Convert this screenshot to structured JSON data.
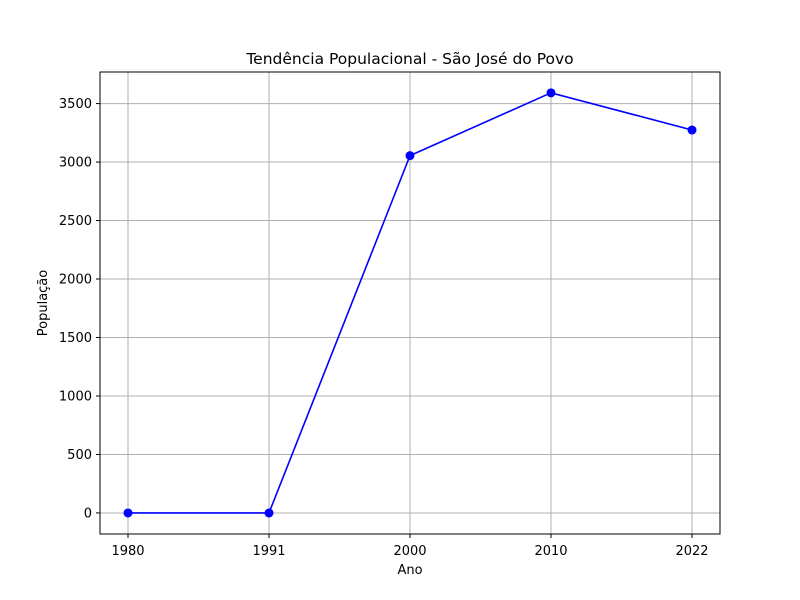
{
  "chart_data": {
    "type": "line",
    "title": "Tendência Populacional - São José do Povo",
    "xlabel": "Ano",
    "ylabel": "População",
    "categories": [
      "1980",
      "1991",
      "2000",
      "2010",
      "2022"
    ],
    "series": [
      {
        "values": [
          0,
          0,
          3055,
          3592,
          3274
        ],
        "color": "#0000ff",
        "marker": "circle"
      }
    ],
    "yticks": [
      0,
      500,
      1000,
      1500,
      2000,
      2500,
      3000,
      3500
    ],
    "ylim": [
      -180,
      3770
    ],
    "grid": true
  }
}
